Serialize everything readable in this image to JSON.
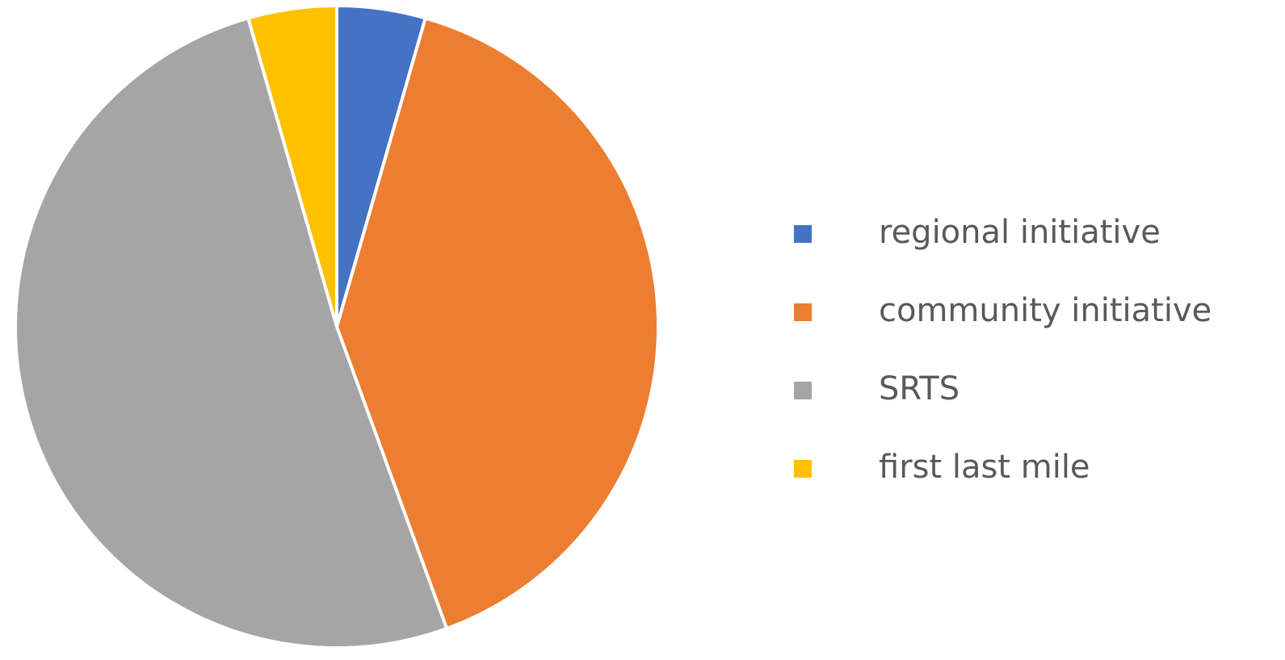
{
  "chart_data": {
    "type": "pie",
    "categories": [
      "regional initiative",
      "community initiative",
      "SRTS",
      "first last mile"
    ],
    "values": [
      2,
      18,
      23,
      2
    ],
    "colors": [
      "#4472c4",
      "#ed7d31",
      "#a5a5a5",
      "#ffc000"
    ],
    "legend": "right"
  }
}
